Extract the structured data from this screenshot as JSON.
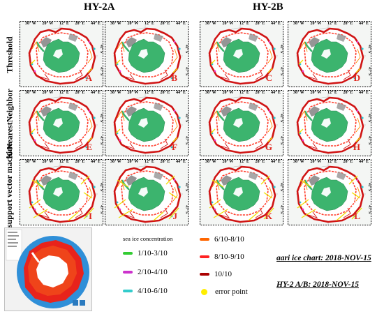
{
  "headers": {
    "left": "HY-2A",
    "right": "HY-2B"
  },
  "rows": [
    {
      "label": "Threshold"
    },
    {
      "label": "K-NearestNeighbor"
    },
    {
      "label": "Lib-support vector machine"
    }
  ],
  "panel_ticks": {
    "lon": [
      "36° W",
      "20° W",
      "12° E",
      "28° E",
      "44° E"
    ],
    "lat": [
      "42° S",
      "47° S"
    ]
  },
  "panels": [
    "A",
    "B",
    "C",
    "D",
    "E",
    "F",
    "G",
    "H",
    "I",
    "J",
    "K",
    "L"
  ],
  "legend": {
    "title": "sea ice concentration",
    "items": [
      {
        "label": "1/10-3/10",
        "color": "#33cc33"
      },
      {
        "label": "2/10-4/10",
        "color": "#cc33cc"
      },
      {
        "label": "4/10-6/10",
        "color": "#33cccc"
      },
      {
        "label": "6/10-8/10",
        "color": "#ff6600"
      },
      {
        "label": "8/10-9/10",
        "color": "#ff2222"
      },
      {
        "label": "10/10",
        "color": "#aa0000"
      },
      {
        "label": "error point",
        "color": "#ffee00"
      }
    ]
  },
  "notes": {
    "aari": "aari ice chart: 2018-NOV-15",
    "hy2": "HY-2 A/B: 2018-NOV-15"
  }
}
